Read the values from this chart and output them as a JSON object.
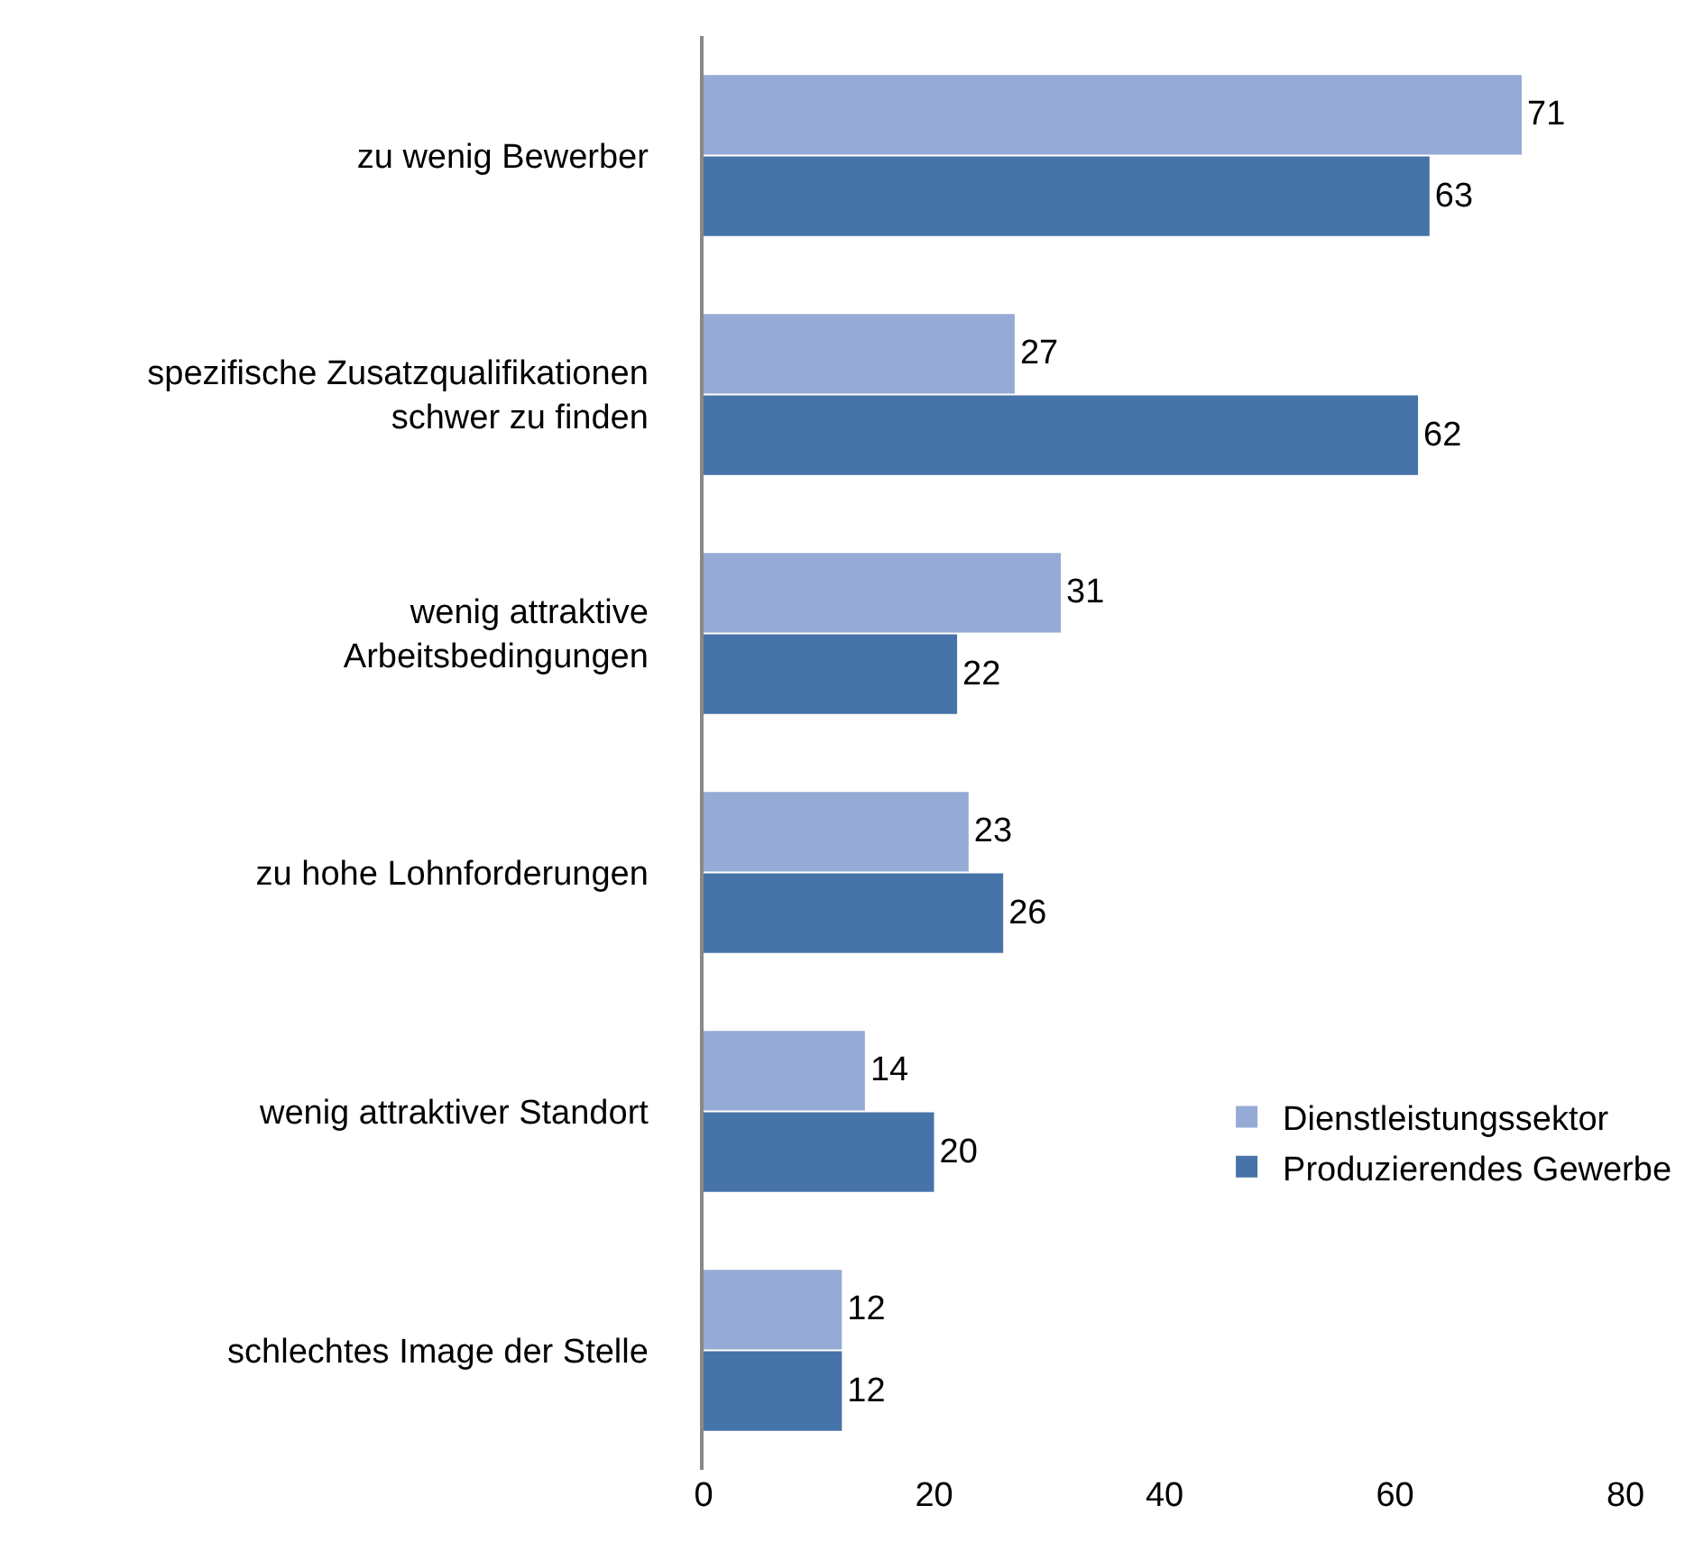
{
  "chart_data": {
    "type": "bar",
    "orientation": "horizontal",
    "categories": [
      "zu wenig Bewerber",
      "spezifische Zusatzqualifikationen\nschwer zu finden",
      "wenig attraktive\nArbeitsbedingungen",
      "zu hohe Lohnforderungen",
      "wenig attraktiver Standort",
      "schlechtes Image der Stelle"
    ],
    "series": [
      {
        "name": "Dienstleistungssektor",
        "color": "#95abd6",
        "values": [
          71,
          27,
          31,
          23,
          14,
          12
        ]
      },
      {
        "name": "Produzierendes Gewerbe",
        "color": "#4673a8",
        "values": [
          63,
          62,
          22,
          26,
          20,
          12
        ]
      }
    ],
    "xlim": [
      0,
      80
    ],
    "xticks": [
      0,
      20,
      40,
      60,
      80
    ],
    "grid": false,
    "legend": "bottom right",
    "data_labels": true
  }
}
